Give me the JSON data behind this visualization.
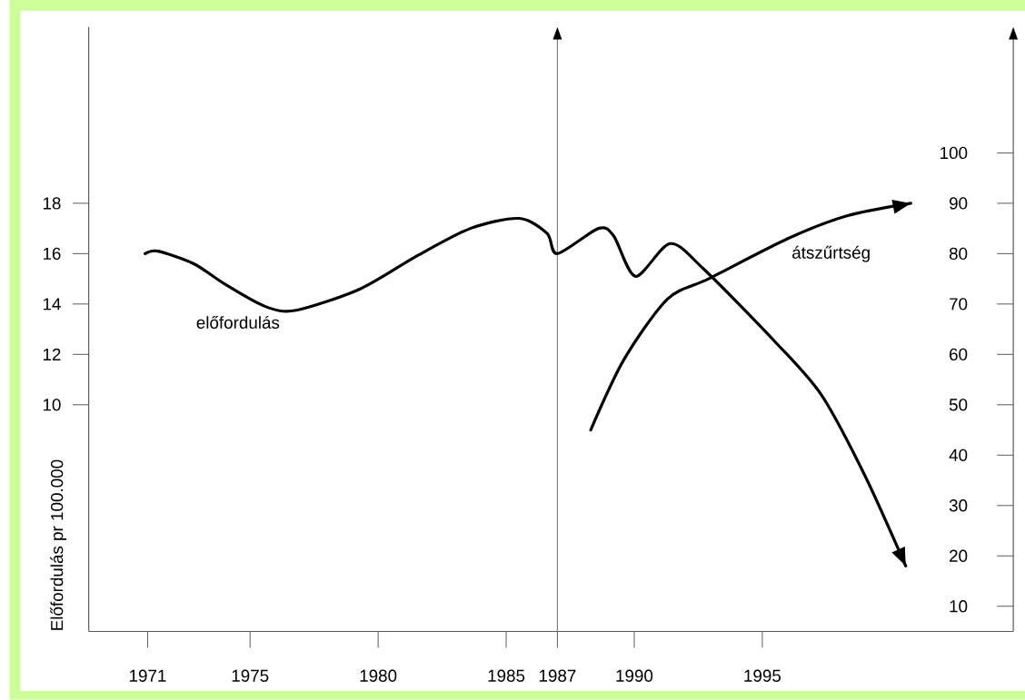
{
  "chart_data": {
    "type": "line",
    "ylabel": "Előfordulás pr 100.000",
    "xlim": [
      1968.7,
      2004.8
    ],
    "xticks": [
      1971,
      1975,
      1980,
      1985,
      1987,
      1990,
      1995
    ],
    "ylim": [
      1,
      25
    ],
    "yticks": [
      10,
      12,
      14,
      16,
      18
    ],
    "y2lim": [
      5,
      125
    ],
    "y2ticks": [
      10,
      20,
      30,
      40,
      50,
      60,
      70,
      80,
      90,
      100
    ],
    "ref_lines": [
      {
        "axis": "x",
        "value": 1987,
        "color": "#808080"
      }
    ],
    "series": [
      {
        "name": "előfordulás",
        "color": "#000000",
        "x": [
          1970.9,
          1971.4,
          1972.8,
          1974.0,
          1975.6,
          1976.8,
          1979.3,
          1981.5,
          1983.6,
          1985.5,
          1986.6,
          1987.0,
          1988.6,
          1989.2,
          1990.05,
          1991.4,
          1992.7,
          1995.5,
          1997.3,
          1999.0,
          2000.6
        ],
        "values": [
          16.0,
          16.1,
          15.6,
          14.8,
          13.9,
          13.75,
          14.6,
          15.9,
          17.0,
          17.4,
          16.8,
          16.0,
          17.0,
          16.7,
          15.1,
          16.4,
          15.4,
          12.5,
          10.4,
          7.2,
          3.6
        ]
      },
      {
        "name": "átszűrtség",
        "color": "#000000",
        "axis": "y2",
        "x": [
          1988.3,
          1989.6,
          1991.3,
          1992.9,
          1996.0,
          1998.3,
          2000.8
        ],
        "values": [
          45,
          59,
          71,
          75,
          83,
          87.5,
          90
        ]
      }
    ]
  }
}
